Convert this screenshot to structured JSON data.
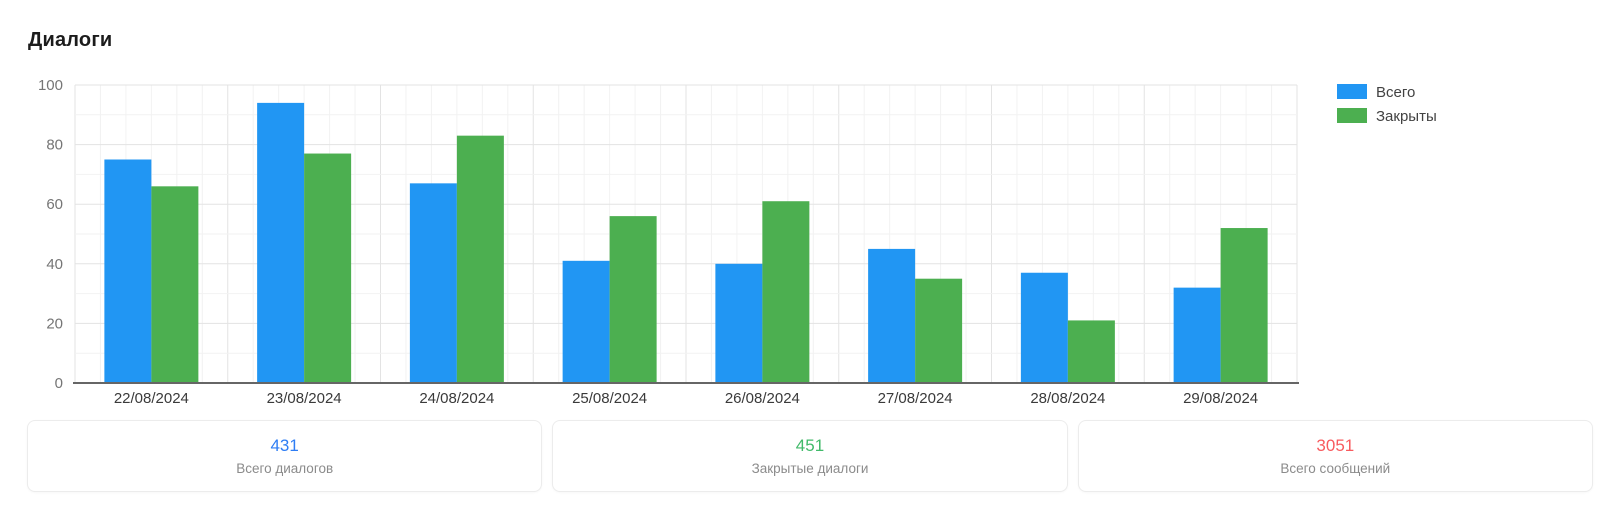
{
  "page": {
    "title": "Диалоги",
    "background": "#ffffff"
  },
  "chart_data": {
    "type": "bar",
    "title": "Диалоги",
    "categories": [
      "22/08/2024",
      "23/08/2024",
      "24/08/2024",
      "25/08/2024",
      "26/08/2024",
      "27/08/2024",
      "28/08/2024",
      "29/08/2024"
    ],
    "series": [
      {
        "name": "Всего",
        "color": "#2196f3",
        "values": [
          75,
          94,
          67,
          41,
          40,
          45,
          37,
          32
        ]
      },
      {
        "name": "Закрыты",
        "color": "#4caf50",
        "values": [
          66,
          77,
          83,
          56,
          61,
          35,
          21,
          52
        ]
      }
    ],
    "xlabel": "",
    "ylabel": "",
    "ylim": [
      0,
      100
    ],
    "y_ticks": [
      0,
      20,
      40,
      60,
      80,
      100
    ],
    "y_minor_step": 10,
    "grid": "on",
    "legend_position": "top-right",
    "colors": {
      "axis_line": "#666666",
      "major_grid": "#e3e3e3",
      "minor_grid": "#f2f2f2",
      "y_tick_text": "#757575",
      "x_tick_text": "#3a3a3a",
      "legend_text": "#424242"
    }
  },
  "summary_cards": [
    {
      "value": "431",
      "label": "Всего диалогов",
      "color": "#2e7df4"
    },
    {
      "value": "451",
      "label": "Закрытые диалоги",
      "color": "#41ba6a"
    },
    {
      "value": "3051",
      "label": "Всего сообщений",
      "color": "#f85a5e"
    }
  ]
}
